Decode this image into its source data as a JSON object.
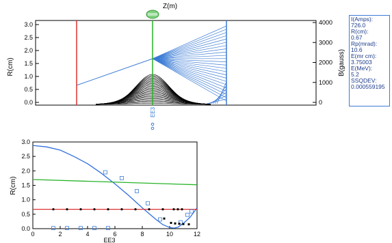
{
  "colors": {
    "red": "#e03030",
    "green": "#27b327",
    "blue": "#3a7bd5",
    "blue_bright": "#2f6fe0",
    "envelope": "#000000",
    "marker": "#3a7bd5"
  },
  "top_plot": {
    "title": "Z(m)",
    "left_axis_label": "R(cm)",
    "right_axis_label": "B(gauss)",
    "left_ticks": [
      "3.0",
      "2.5",
      "2.0",
      "1.5",
      "1.0",
      "0.5",
      "0.0"
    ],
    "right_ticks": [
      "4000",
      "3000",
      "2000",
      "1000",
      "0"
    ],
    "marker_label": "EE3",
    "marker_icon": "lens-icon"
  },
  "info_panel": {
    "lines": [
      "I(Amps):",
      "726.0",
      "R(cm):",
      "0.67",
      "Rp(mrad):",
      "10.6",
      "E(mr cm):",
      "3.75003",
      "E(MeV):",
      "5.2",
      "SSQDEV:",
      "0.000559195"
    ]
  },
  "bottom_plot": {
    "y_label": "R(cm)",
    "x_label": "EE3",
    "y_ticks": [
      "3.0",
      "2.5",
      "2.0",
      "1.5",
      "1.0",
      "0.5",
      "0.0"
    ],
    "x_ticks": [
      "0",
      "2",
      "4",
      "6",
      "8",
      "10",
      "12"
    ]
  },
  "chart_data": {
    "type": "line",
    "xlim": [
      0,
      12
    ],
    "ylim": [
      0,
      3
    ],
    "series": [
      {
        "color": "#2f6fe0",
        "x": [
          0,
          1,
          2,
          3,
          4,
          5,
          6,
          7,
          8,
          9,
          9.5,
          10,
          10.3,
          10.6,
          11,
          11.5,
          12
        ],
        "y": [
          2.88,
          2.83,
          2.72,
          2.5,
          2.25,
          1.92,
          1.55,
          1.15,
          0.72,
          0.32,
          0.14,
          0.04,
          0.02,
          0.05,
          0.18,
          0.4,
          0.72
        ]
      },
      {
        "color": "#27b327",
        "x": [
          0,
          12
        ],
        "y": [
          1.7,
          1.52
        ]
      },
      {
        "color": "#e03030",
        "x": [
          0,
          12
        ],
        "y": [
          0.67,
          0.67
        ]
      }
    ],
    "open_squares": {
      "x": [
        1.5,
        2.5,
        3.5,
        4.5,
        5.5,
        5.3,
        6.5,
        7.6,
        8.4,
        9.3,
        10.8,
        11.3,
        11.6
      ],
      "y": [
        0.02,
        0.02,
        0.02,
        0.02,
        0.02,
        1.95,
        1.75,
        1.3,
        0.88,
        0.32,
        0.22,
        0.48,
        0.6
      ]
    },
    "red_dots": {
      "x": [
        1.5,
        2.5,
        3.5,
        4.5,
        5.5,
        6.5,
        7.5,
        8.5,
        9.5,
        10.3,
        10.6,
        10.9
      ],
      "y": [
        0.67,
        0.67,
        0.67,
        0.67,
        0.67,
        0.67,
        0.67,
        0.67,
        0.67,
        0.67,
        0.67,
        0.67
      ]
    },
    "black_dots": {
      "x": [
        9.6,
        10.1,
        10.4,
        10.7,
        11.0,
        11.4
      ],
      "y": [
        0.35,
        0.2,
        0.18,
        0.17,
        0.16,
        0.15
      ]
    }
  }
}
